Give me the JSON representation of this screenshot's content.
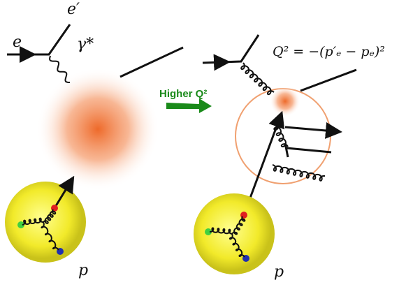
{
  "labels": {
    "electron_out": "e′",
    "electron_in": "e",
    "photon": "γ*",
    "arrow_text": "Higher Q²",
    "formula": "Q² = −(p′ₑ − pₑ)²",
    "proton_left": "p",
    "proton_right": "p"
  }
}
